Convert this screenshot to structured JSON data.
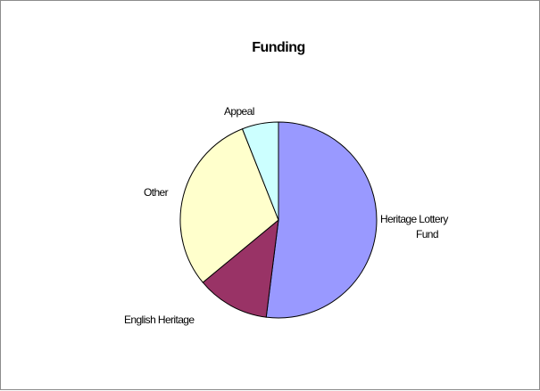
{
  "chart_data": {
    "type": "pie",
    "title": "Funding",
    "start_angle_deg": 0,
    "direction": "clockwise",
    "legend": "none",
    "slices": [
      {
        "label": "Heritage Lottery Fund",
        "label_lines": [
          "Heritage Lottery",
          "Fund"
        ],
        "value": 52,
        "color": "#9999ff"
      },
      {
        "label": "English Heritage",
        "label_lines": [
          "English Heritage"
        ],
        "value": 12,
        "color": "#993366"
      },
      {
        "label": "Other",
        "label_lines": [
          "Other"
        ],
        "value": 30,
        "color": "#ffffcc"
      },
      {
        "label": "Appeal",
        "label_lines": [
          "Appeal"
        ],
        "value": 6,
        "color": "#ccffff"
      }
    ]
  }
}
